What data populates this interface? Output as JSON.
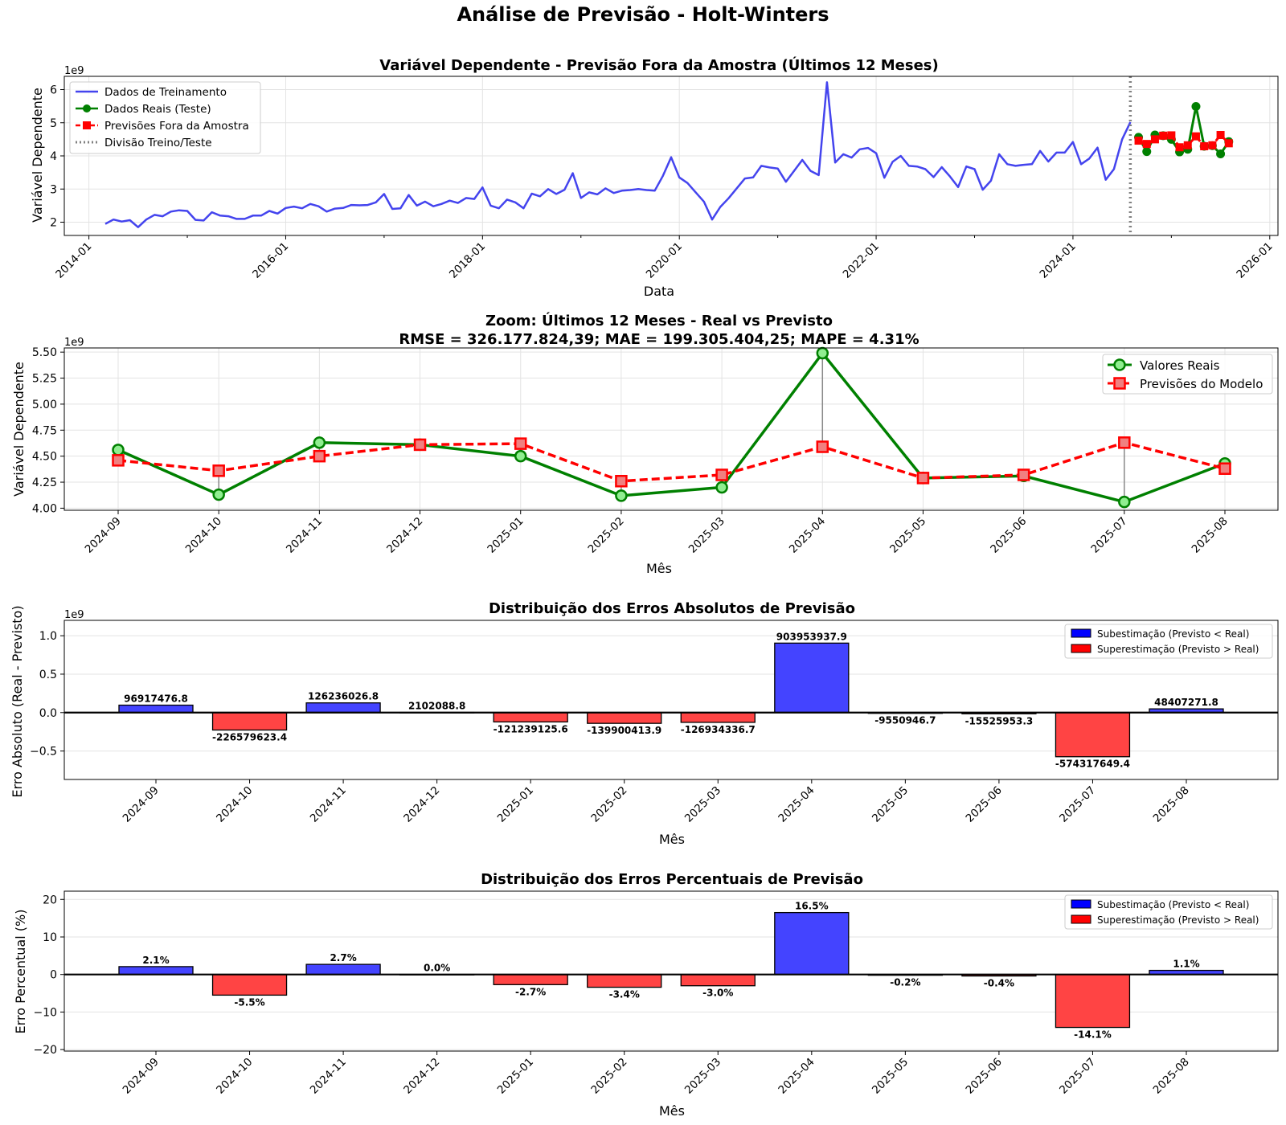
{
  "figure_title": "Análise de Previsão - Holt-Winters",
  "colors": {
    "train": "#4444ee",
    "actual": "#008000",
    "forecast": "#ff0000",
    "divider": "#808080",
    "under": "#4444ff",
    "over": "#ff4444",
    "actual_marker_fill": "#90ee90",
    "forecast_marker_fill": "#f08080"
  },
  "chart_data": [
    {
      "id": "series",
      "type": "line",
      "title": "Variável Dependente - Previsão Fora da Amostra (Últimos 12 Meses)",
      "xlabel": "Data",
      "ylabel": "Variável Dependente",
      "y_offset_label": "1e9",
      "xlim": [
        "2013-10",
        "2026-02"
      ],
      "ylim": [
        1.6,
        6.4
      ],
      "y_ticks": [
        "2",
        "3",
        "4",
        "5",
        "6"
      ],
      "x_ticks": [
        "2014-01",
        "2016-01",
        "2018-01",
        "2020-01",
        "2022-01",
        "2024-01",
        "2026-01"
      ],
      "grid": true,
      "legend_position": "top-left",
      "legend": [
        "Dados de Treinamento",
        "Dados Reais (Teste)",
        "Previsões Fora da Amostra",
        "Divisão Treino/Teste"
      ],
      "divider_date": "2024-08",
      "train": {
        "start": "2014-03",
        "values": [
          1.95,
          2.08,
          2.02,
          2.06,
          1.85,
          2.08,
          2.22,
          2.18,
          2.32,
          2.36,
          2.34,
          2.07,
          2.05,
          2.3,
          2.2,
          2.18,
          2.1,
          2.1,
          2.2,
          2.2,
          2.34,
          2.26,
          2.43,
          2.47,
          2.42,
          2.55,
          2.48,
          2.32,
          2.41,
          2.43,
          2.52,
          2.51,
          2.52,
          2.6,
          2.85,
          2.4,
          2.42,
          2.82,
          2.5,
          2.62,
          2.48,
          2.55,
          2.65,
          2.58,
          2.73,
          2.7,
          3.05,
          2.5,
          2.42,
          2.68,
          2.6,
          2.42,
          2.86,
          2.78,
          3.0,
          2.85,
          2.98,
          3.48,
          2.73,
          2.9,
          2.84,
          3.02,
          2.88,
          2.95,
          2.97,
          3.0,
          2.97,
          2.95,
          3.4,
          3.96,
          3.35,
          3.18,
          2.9,
          2.62,
          2.08,
          2.46,
          2.72,
          3.02,
          3.32,
          3.35,
          3.7,
          3.65,
          3.62,
          3.22,
          3.55,
          3.88,
          3.55,
          3.42,
          6.22,
          3.8,
          4.05,
          3.95,
          4.2,
          4.24,
          4.08,
          3.34,
          3.82,
          4.0,
          3.7,
          3.68,
          3.6,
          3.36,
          3.66,
          3.38,
          3.06,
          3.68,
          3.6,
          2.98,
          3.25,
          4.05,
          3.75,
          3.7,
          3.73,
          3.75,
          4.15,
          3.83,
          4.1,
          4.1,
          4.42,
          3.75,
          3.92,
          4.25,
          3.28,
          3.6,
          4.5,
          5.02
        ]
      },
      "test_months": [
        "2024-09",
        "2024-10",
        "2024-11",
        "2024-12",
        "2025-01",
        "2025-02",
        "2025-03",
        "2025-04",
        "2025-05",
        "2025-06",
        "2025-07",
        "2025-08"
      ],
      "actual": [
        4.56,
        4.13,
        4.63,
        4.61,
        4.5,
        4.12,
        4.2,
        5.49,
        4.29,
        4.31,
        4.06,
        4.43
      ],
      "forecast": [
        4.46,
        4.36,
        4.5,
        4.61,
        4.62,
        4.26,
        4.32,
        4.59,
        4.29,
        4.32,
        4.63,
        4.38
      ]
    },
    {
      "id": "zoom",
      "type": "line",
      "title": "Zoom: Últimos 12 Meses - Real vs Previsto",
      "subtitle": "RMSE = 326.177.824,39; MAE = 199.305.404,25; MAPE = 4.31%",
      "xlabel": "Mês",
      "ylabel": "Variável Dependente",
      "y_offset_label": "1e9",
      "ylim": [
        3.98,
        5.54
      ],
      "y_ticks": [
        "4.00",
        "4.25",
        "4.50",
        "4.75",
        "5.00",
        "5.25",
        "5.50"
      ],
      "categories": [
        "2024-09",
        "2024-10",
        "2024-11",
        "2024-12",
        "2025-01",
        "2025-02",
        "2025-03",
        "2025-04",
        "2025-05",
        "2025-06",
        "2025-07",
        "2025-08"
      ],
      "grid": true,
      "legend_position": "top-right",
      "series": [
        {
          "name": "Valores Reais",
          "values": [
            4.56,
            4.13,
            4.63,
            4.61,
            4.5,
            4.12,
            4.2,
            5.49,
            4.29,
            4.31,
            4.06,
            4.43
          ]
        },
        {
          "name": "Previsões do Modelo",
          "values": [
            4.46,
            4.36,
            4.5,
            4.61,
            4.62,
            4.26,
            4.32,
            4.59,
            4.29,
            4.32,
            4.63,
            4.38
          ]
        }
      ]
    },
    {
      "id": "abs",
      "type": "bar",
      "title": "Distribuição dos Erros Absolutos de Previsão",
      "xlabel": "Mês",
      "ylabel": "Erro Absoluto (Real - Previsto)",
      "y_offset_label": "1e9",
      "ylim": [
        -0.87,
        1.2
      ],
      "y_ticks": [
        "−0.5",
        "0.0",
        "0.5",
        "1.0"
      ],
      "y_tick_values": [
        -0.5,
        0,
        0.5,
        1.0
      ],
      "categories": [
        "2024-09",
        "2024-10",
        "2024-11",
        "2024-12",
        "2025-01",
        "2025-02",
        "2025-03",
        "2025-04",
        "2025-05",
        "2025-06",
        "2025-07",
        "2025-08"
      ],
      "values": [
        0.0969174768,
        -0.2265796234,
        0.1262360268,
        0.0021020888,
        -0.1212391256,
        -0.1399004139,
        -0.1269343367,
        0.9039539379,
        -0.0095509467,
        -0.0155259533,
        -0.5743176494,
        0.0484072718
      ],
      "labels": [
        "96917476.8",
        "-226579623.4",
        "126236026.8",
        "2102088.8",
        "-121239125.6",
        "-139900413.9",
        "-126934336.7",
        "903953937.9",
        "-9550946.7",
        "-15525953.3",
        "-574317649.4",
        "48407271.8"
      ],
      "legend_position": "top-right",
      "legend": [
        "Subestimação (Previsto < Real)",
        "Superestimação (Previsto > Real)"
      ],
      "grid": true
    },
    {
      "id": "pct",
      "type": "bar",
      "title": "Distribuição dos Erros Percentuais de Previsão",
      "xlabel": "Mês",
      "ylabel": "Erro Percentual (%)",
      "ylim": [
        -20.4,
        22.2
      ],
      "y_ticks": [
        "−20",
        "−10",
        "0",
        "10",
        "20"
      ],
      "y_tick_values": [
        -20,
        -10,
        0,
        10,
        20
      ],
      "categories": [
        "2024-09",
        "2024-10",
        "2024-11",
        "2024-12",
        "2025-01",
        "2025-02",
        "2025-03",
        "2025-04",
        "2025-05",
        "2025-06",
        "2025-07",
        "2025-08"
      ],
      "values": [
        2.1,
        -5.5,
        2.7,
        0.0,
        -2.7,
        -3.4,
        -3.0,
        16.5,
        -0.2,
        -0.4,
        -14.1,
        1.1
      ],
      "labels": [
        "2.1%",
        "-5.5%",
        "2.7%",
        "0.0%",
        "-2.7%",
        "-3.4%",
        "-3.0%",
        "16.5%",
        "-0.2%",
        "-0.4%",
        "-14.1%",
        "1.1%"
      ],
      "legend_position": "top-right",
      "legend": [
        "Subestimação (Previsto < Real)",
        "Superestimação (Previsto > Real)"
      ],
      "grid": true
    }
  ]
}
